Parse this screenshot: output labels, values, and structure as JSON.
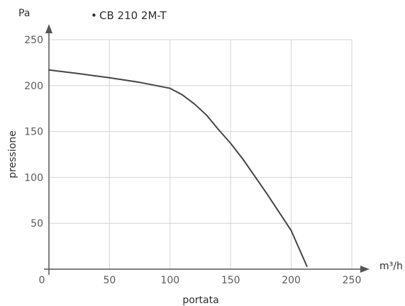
{
  "chart_data": {
    "type": "line",
    "title": "",
    "xlabel": "portata",
    "ylabel": "pressione",
    "x_unit": "m³/h",
    "y_unit": "Pa",
    "xlim": [
      0,
      250
    ],
    "ylim": [
      0,
      250
    ],
    "x_ticks": [
      0,
      50,
      100,
      150,
      200,
      250
    ],
    "y_ticks": [
      50,
      100,
      150,
      200,
      250
    ],
    "grid": true,
    "legend": "top-left",
    "series": [
      {
        "name": "CB 210 2M-T",
        "color": "#444444",
        "x": [
          0,
          25,
          50,
          75,
          100,
          110,
          120,
          130,
          140,
          150,
          160,
          170,
          180,
          190,
          200,
          213
        ],
        "y": [
          217,
          213,
          208.5,
          203.5,
          197,
          190,
          180,
          168,
          152,
          137,
          120,
          101,
          82,
          62,
          42,
          3
        ]
      }
    ]
  }
}
